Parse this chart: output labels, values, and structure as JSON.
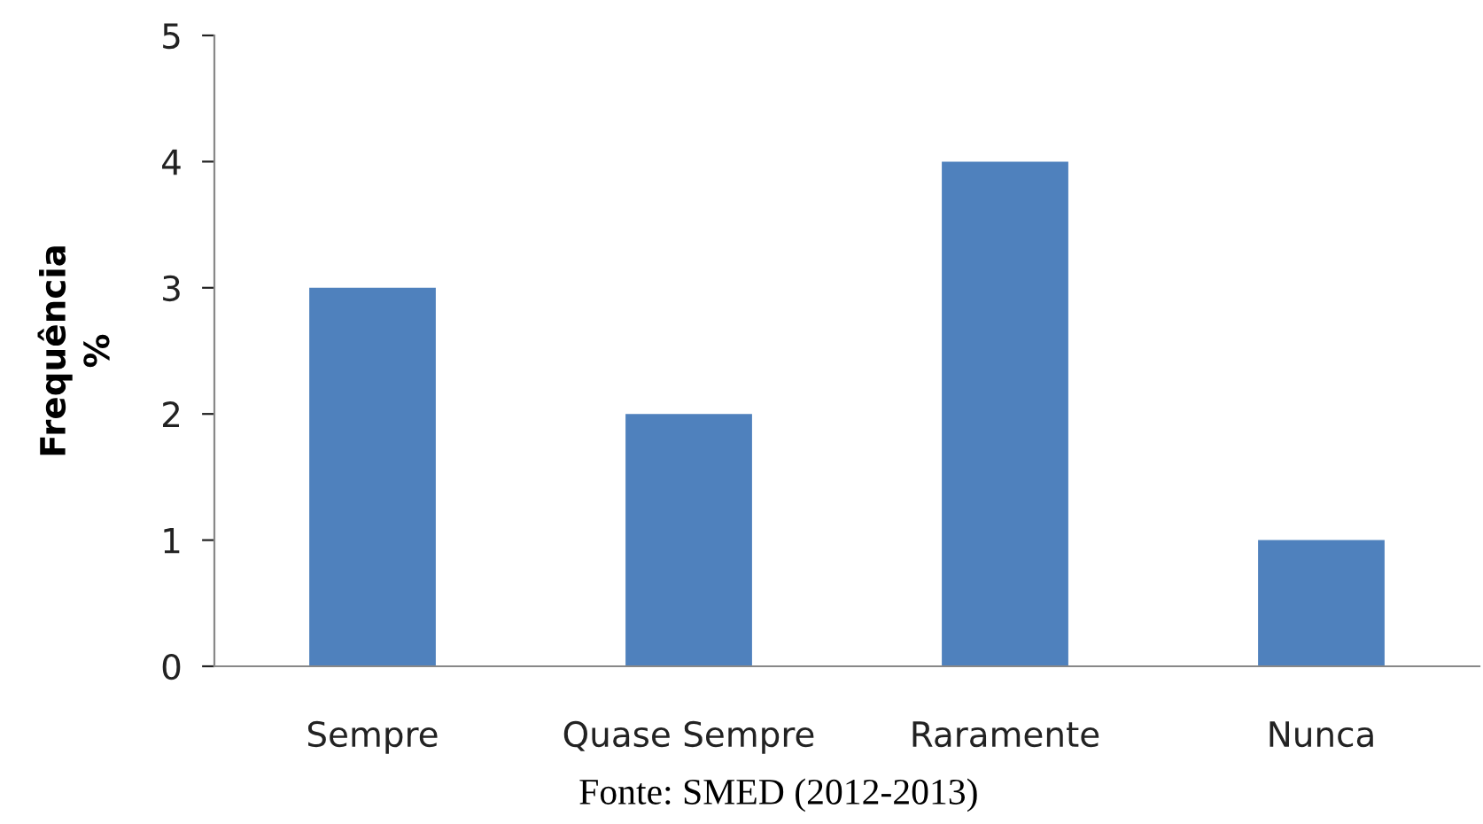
{
  "chart_data": {
    "type": "bar",
    "ylabel": "Frequência\n%",
    "categories": [
      "Sempre",
      "Quase Sempre",
      "Raramente",
      "Nunca"
    ],
    "values": [
      3,
      2,
      4,
      1
    ],
    "color": "#4f81bd",
    "ylim": [
      0,
      5
    ],
    "yticks": [
      0,
      1,
      2,
      3,
      4,
      5
    ],
    "grid": false,
    "legend": false,
    "annotations": [
      "Fonte: SMED (2012-2013)"
    ]
  }
}
